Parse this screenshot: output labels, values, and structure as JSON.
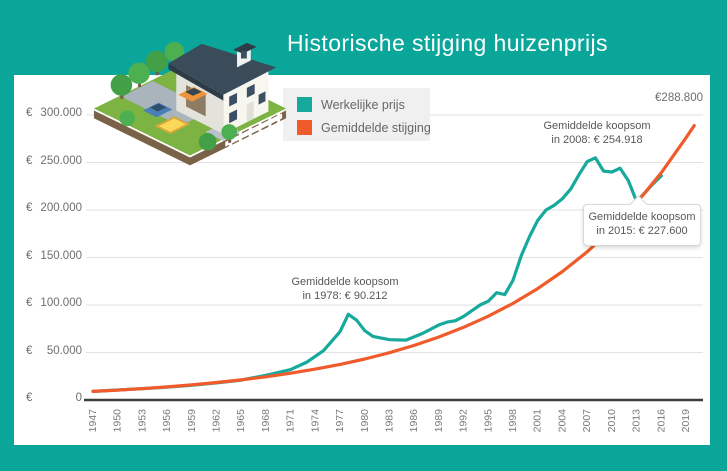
{
  "page": {
    "background_color": "#0aa69a",
    "card_color": "#ffffff"
  },
  "header": {
    "title": "Historische stijging huizenprijs"
  },
  "annotations": {
    "peak1978": {
      "line1": "Gemiddelde koopsom",
      "line2": "in 1978: € 90.212"
    },
    "peak2008": {
      "line1": "Gemiddelde koopsom",
      "line2": "in 2008: € 254.918"
    },
    "tooltip2015": {
      "line1": "Gemiddelde koopsom",
      "line2": "in 2015: € 227.600"
    },
    "end_label": "€288.800"
  },
  "chart_data": {
    "type": "line",
    "title": "Historische stijging huizenprijs",
    "grid": true,
    "legend_position": "top-left",
    "xlim": [
      1947,
      2020
    ],
    "ylim": [
      0,
      300000
    ],
    "x_ticks": [
      1947,
      1950,
      1953,
      1956,
      1959,
      1962,
      1965,
      1968,
      1971,
      1974,
      1977,
      1980,
      1983,
      1986,
      1989,
      1992,
      1995,
      1998,
      2001,
      2004,
      2007,
      2010,
      2013,
      2016,
      2019
    ],
    "y_ticks": [
      {
        "currency": "€",
        "amount": "0",
        "value": 0
      },
      {
        "currency": "€",
        "amount": "50.000",
        "value": 50000
      },
      {
        "currency": "€",
        "amount": "100.000",
        "value": 100000
      },
      {
        "currency": "€",
        "amount": "150.000",
        "value": 150000
      },
      {
        "currency": "€",
        "amount": "200.000",
        "value": 200000
      },
      {
        "currency": "€",
        "amount": "250.000",
        "value": 250000
      },
      {
        "currency": "€",
        "amount": "300.000",
        "value": 300000
      }
    ],
    "series": [
      {
        "name": "Werkelijke prijs",
        "color": "#16a99c",
        "points": [
          [
            1947,
            9000
          ],
          [
            1950,
            10500
          ],
          [
            1953,
            12000
          ],
          [
            1956,
            13500
          ],
          [
            1959,
            15500
          ],
          [
            1962,
            18000
          ],
          [
            1965,
            21000
          ],
          [
            1968,
            26000
          ],
          [
            1971,
            32000
          ],
          [
            1973,
            40000
          ],
          [
            1975,
            52000
          ],
          [
            1977,
            72000
          ],
          [
            1978,
            90212
          ],
          [
            1979,
            84000
          ],
          [
            1980,
            73000
          ],
          [
            1981,
            67000
          ],
          [
            1983,
            63500
          ],
          [
            1985,
            63000
          ],
          [
            1987,
            70000
          ],
          [
            1989,
            79000
          ],
          [
            1990,
            82000
          ],
          [
            1991,
            83500
          ],
          [
            1992,
            88000
          ],
          [
            1993,
            94000
          ],
          [
            1994,
            100000
          ],
          [
            1995,
            104000
          ],
          [
            1996,
            113000
          ],
          [
            1997,
            111000
          ],
          [
            1998,
            126000
          ],
          [
            1999,
            152000
          ],
          [
            2000,
            172000
          ],
          [
            2001,
            189000
          ],
          [
            2002,
            200000
          ],
          [
            2003,
            205000
          ],
          [
            2004,
            212000
          ],
          [
            2005,
            222000
          ],
          [
            2006,
            237000
          ],
          [
            2007,
            251000
          ],
          [
            2008,
            254918
          ],
          [
            2009,
            241000
          ],
          [
            2010,
            240000
          ],
          [
            2011,
            244000
          ],
          [
            2012,
            231000
          ],
          [
            2013,
            209000
          ],
          [
            2014,
            218000
          ],
          [
            2015,
            227600
          ],
          [
            2016,
            236000
          ]
        ]
      },
      {
        "name": "Gemiddelde stijging",
        "color": "#f15b2b",
        "points": [
          [
            1947,
            9000
          ],
          [
            1950,
            10400
          ],
          [
            1953,
            12000
          ],
          [
            1956,
            13800
          ],
          [
            1959,
            15900
          ],
          [
            1962,
            18400
          ],
          [
            1965,
            21200
          ],
          [
            1968,
            24400
          ],
          [
            1971,
            28200
          ],
          [
            1974,
            32500
          ],
          [
            1977,
            37500
          ],
          [
            1980,
            43200
          ],
          [
            1983,
            49800
          ],
          [
            1986,
            57500
          ],
          [
            1989,
            66300
          ],
          [
            1992,
            76500
          ],
          [
            1995,
            88200
          ],
          [
            1998,
            101700
          ],
          [
            2001,
            117300
          ],
          [
            2004,
            135300
          ],
          [
            2007,
            156000
          ],
          [
            2010,
            179900
          ],
          [
            2013,
            207500
          ],
          [
            2016,
            239300
          ],
          [
            2019,
            276000
          ],
          [
            2020,
            288800
          ]
        ]
      }
    ]
  }
}
